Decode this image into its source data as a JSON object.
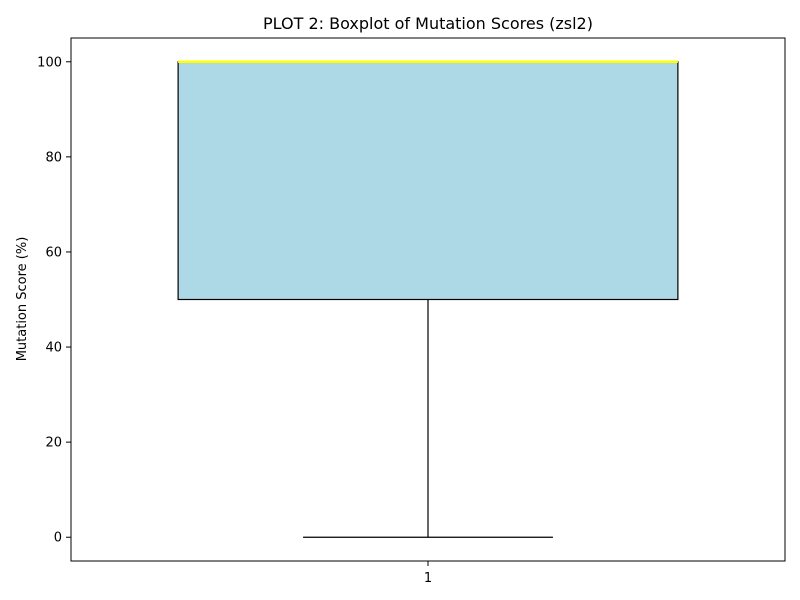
{
  "chart_data": {
    "type": "boxplot",
    "title": "PLOT 2: Boxplot of Mutation Scores (zsl2)",
    "xlabel": "",
    "ylabel": "Mutation Score (%)",
    "categories": [
      "1"
    ],
    "boxes": [
      {
        "category": "1",
        "whisker_low": 0,
        "q1": 50,
        "median": 100,
        "q3": 100,
        "whisker_high": 100
      }
    ],
    "ylim": [
      -5,
      105
    ],
    "xlim": [
      0.5,
      1.5
    ],
    "yticks": [
      0,
      20,
      40,
      60,
      80,
      100
    ],
    "grid": false,
    "colors": {
      "box_fill": "#add8e6",
      "box_edge": "#000000",
      "median": "#ffff00",
      "whisker": "#000000"
    }
  }
}
